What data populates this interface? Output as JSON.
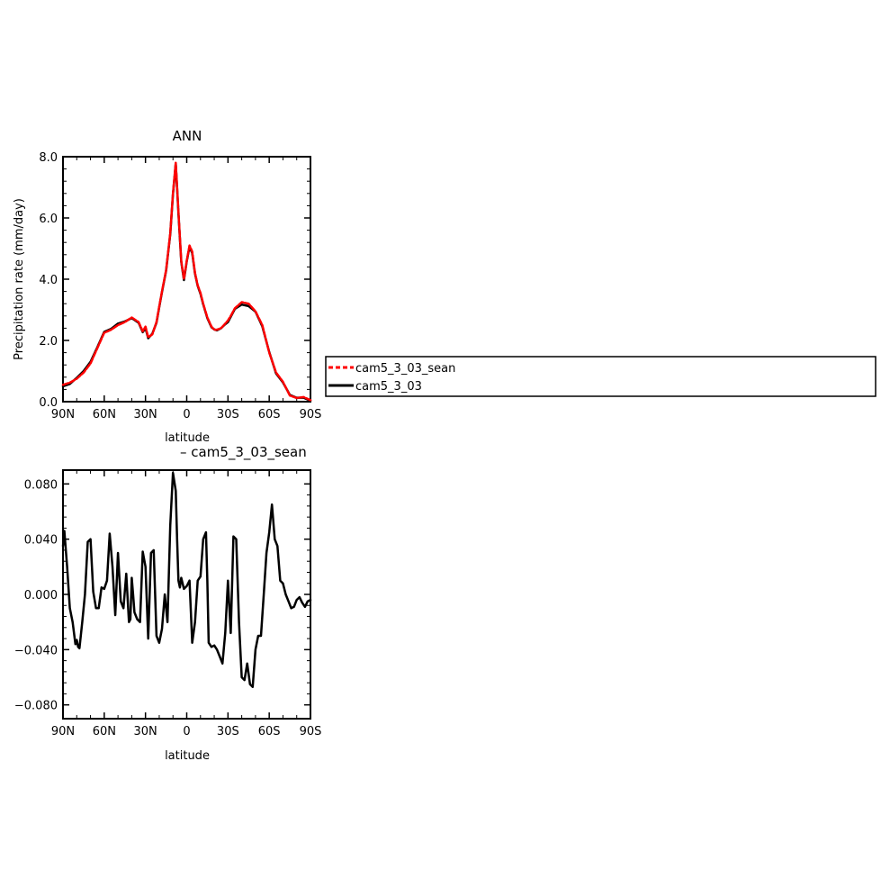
{
  "chart_data": [
    {
      "type": "line",
      "title": "ANN",
      "xlabel": "latitude",
      "ylabel": "Precipitation rate (mm/day)",
      "xlim": [
        -90,
        90
      ],
      "ylim": [
        0,
        8
      ],
      "x_axis_orientation": "90N on left, 90S on right",
      "xticks": [
        -90,
        -60,
        -30,
        0,
        30,
        60,
        90
      ],
      "xtick_labels": [
        "90N",
        "60N",
        "30N",
        "0",
        "30S",
        "60S",
        "90S"
      ],
      "yticks": [
        0,
        2,
        4,
        6,
        8
      ],
      "ytick_labels": [
        "0.0",
        "2.0",
        "4.0",
        "6.0",
        "8.0"
      ],
      "grid": false,
      "legend_placement": "right of plot",
      "x": [
        -90,
        -85,
        -80,
        -75,
        -70,
        -65,
        -60,
        -55,
        -50,
        -45,
        -40,
        -35,
        -32,
        -30,
        -28,
        -25,
        -22,
        -20,
        -18,
        -15,
        -12,
        -10,
        -8,
        -6,
        -4,
        -2,
        0,
        2,
        4,
        6,
        8,
        10,
        12,
        15,
        18,
        20,
        22,
        25,
        28,
        30,
        32,
        35,
        40,
        45,
        50,
        55,
        60,
        65,
        70,
        75,
        80,
        85,
        90
      ],
      "series": [
        {
          "name": "cam5_3_03_sean",
          "color": "#ff0000",
          "dash": "dashed",
          "values": [
            0.55,
            0.62,
            0.75,
            0.95,
            1.25,
            1.75,
            2.25,
            2.35,
            2.5,
            2.6,
            2.75,
            2.6,
            2.3,
            2.45,
            2.1,
            2.2,
            2.6,
            3.1,
            3.6,
            4.3,
            5.5,
            6.8,
            7.8,
            6.2,
            4.6,
            4.0,
            4.6,
            5.1,
            4.9,
            4.2,
            3.8,
            3.55,
            3.2,
            2.75,
            2.45,
            2.35,
            2.35,
            2.4,
            2.55,
            2.65,
            2.8,
            3.05,
            3.25,
            3.2,
            2.95,
            2.5,
            1.6,
            0.95,
            0.65,
            0.2,
            0.12,
            0.15,
            0.05
          ]
        },
        {
          "name": "cam5_3_03",
          "color": "#000000",
          "dash": "solid",
          "values": [
            0.5,
            0.58,
            0.78,
            1.0,
            1.3,
            1.78,
            2.28,
            2.38,
            2.55,
            2.62,
            2.73,
            2.58,
            2.27,
            2.4,
            2.07,
            2.22,
            2.58,
            3.08,
            3.58,
            4.28,
            5.47,
            6.77,
            7.77,
            6.15,
            4.57,
            3.97,
            4.58,
            5.06,
            4.85,
            4.18,
            3.78,
            3.52,
            3.18,
            2.73,
            2.43,
            2.36,
            2.33,
            2.4,
            2.53,
            2.6,
            2.77,
            3.03,
            3.17,
            3.12,
            2.94,
            2.46,
            1.62,
            0.92,
            0.63,
            0.22,
            0.13,
            0.13,
            0.03
          ]
        }
      ]
    },
    {
      "type": "line",
      "title": "– cam5_3_03_sean",
      "xlabel": "latitude",
      "ylabel": "",
      "xlim": [
        -90,
        90
      ],
      "ylim": [
        -0.09,
        0.09
      ],
      "xticks": [
        -90,
        -60,
        -30,
        0,
        30,
        60,
        90
      ],
      "xtick_labels": [
        "90N",
        "60N",
        "30N",
        "0",
        "30S",
        "60S",
        "90S"
      ],
      "yticks": [
        -0.08,
        -0.04,
        0.0,
        0.04,
        0.08
      ],
      "ytick_labels": [
        "−0.080",
        "−0.040",
        "0.000",
        "0.040",
        "0.080"
      ],
      "grid": false,
      "x": [
        -90,
        -89,
        -87,
        -85,
        -83,
        -81,
        -80,
        -79,
        -78,
        -76,
        -74,
        -72,
        -70,
        -68,
        -66,
        -64,
        -62,
        -60,
        -58,
        -56,
        -54,
        -52,
        -50,
        -48,
        -46,
        -44,
        -42,
        -41,
        -40,
        -39,
        -38,
        -36,
        -34,
        -32,
        -30,
        -28,
        -26,
        -24,
        -22,
        -20,
        -18,
        -16,
        -14,
        -12,
        -10,
        -8,
        -7,
        -6,
        -5,
        -4,
        -2,
        0,
        2,
        4,
        6,
        8,
        10,
        12,
        14,
        15,
        16,
        18,
        20,
        22,
        24,
        26,
        28,
        30,
        32,
        34,
        36,
        38,
        40,
        42,
        44,
        46,
        48,
        50,
        52,
        54,
        56,
        58,
        60,
        62,
        64,
        66,
        68,
        70,
        72,
        74,
        76,
        78,
        80,
        82,
        84,
        86,
        88,
        90
      ],
      "series": [
        {
          "name": "",
          "color": "#000000",
          "dash": "solid",
          "values": [
            0.035,
            0.046,
            0.02,
            -0.01,
            -0.02,
            -0.036,
            -0.033,
            -0.038,
            -0.039,
            -0.02,
            0.0,
            0.038,
            0.04,
            0.002,
            -0.01,
            -0.01,
            0.005,
            0.004,
            0.01,
            0.044,
            0.02,
            -0.015,
            0.03,
            -0.005,
            -0.01,
            0.015,
            -0.02,
            -0.018,
            0.012,
            0.0,
            -0.013,
            -0.018,
            -0.02,
            0.031,
            0.02,
            -0.032,
            0.03,
            0.032,
            -0.03,
            -0.035,
            -0.025,
            0.0,
            -0.02,
            0.05,
            0.088,
            0.075,
            0.04,
            0.01,
            0.005,
            0.012,
            0.004,
            0.006,
            0.01,
            -0.035,
            -0.02,
            0.01,
            0.013,
            0.04,
            0.045,
            0.01,
            -0.035,
            -0.038,
            -0.037,
            -0.04,
            -0.045,
            -0.05,
            -0.028,
            0.01,
            -0.028,
            0.042,
            0.04,
            -0.02,
            -0.06,
            -0.062,
            -0.05,
            -0.065,
            -0.067,
            -0.04,
            -0.03,
            -0.03,
            0.0,
            0.03,
            0.045,
            0.065,
            0.04,
            0.035,
            0.01,
            0.008,
            0.0,
            -0.005,
            -0.01,
            -0.009,
            -0.004,
            -0.002,
            -0.006,
            -0.009,
            -0.005,
            -0.004
          ]
        }
      ]
    }
  ],
  "legend": {
    "items": [
      {
        "label": "cam5_3_03_sean",
        "color": "#ff0000",
        "dash": "dashed"
      },
      {
        "label": "cam5_3_03",
        "color": "#000000",
        "dash": "solid"
      }
    ]
  }
}
